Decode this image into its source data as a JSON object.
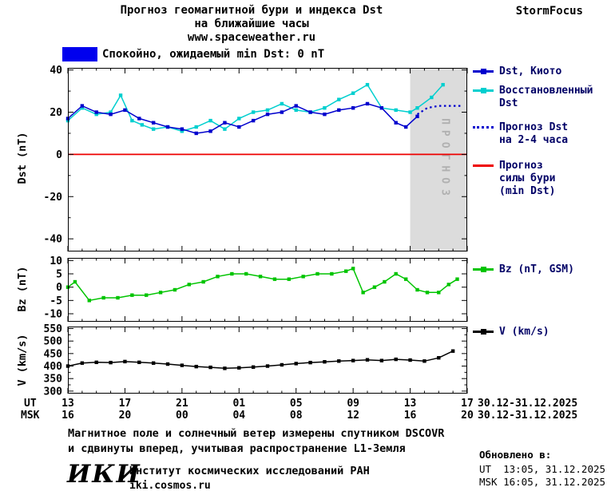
{
  "colors": {
    "kyoto": "#0000cd",
    "restored": "#00cfcf",
    "forecast": "#0000cd",
    "storm_line": "#ee0000",
    "bz": "#00c400",
    "v": "#000000",
    "quiet_box": "#0000ee",
    "forecast_region": "#dcdcdc",
    "forecast_text": "#b0b0b0",
    "legend_text": "#000066"
  },
  "header": {
    "title_line1": "Прогноз геомагнитной бури и индекса Dst",
    "title_line2": "на ближайшие часы",
    "website": "www.spaceweather.ru",
    "brand": "StormFocus"
  },
  "status": {
    "label": "Спокойно, ожидаемый min Dst: 0 nT"
  },
  "legend": {
    "kyoto": "Dst, Киото",
    "restored": "Восстановленный\nDst",
    "forecast": "Прогноз Dst\nна 2-4 часа",
    "storm": "Прогноз\nсилы бури\n(min Dst)",
    "bz": "Bz (nT, GSM)",
    "v": "V (km/s)"
  },
  "axes": {
    "dst_label": "Dst (nT)",
    "bz_label": "Bz (nT)",
    "v_label": "V (km/s)"
  },
  "xaxis": {
    "ut_label": "UT",
    "msk_label": "MSK",
    "tick_hours": [
      0,
      4,
      8,
      12,
      16,
      20,
      24,
      28
    ],
    "ut_ticks": [
      "13",
      "17",
      "21",
      "01",
      "05",
      "09",
      "13",
      "17"
    ],
    "msk_ticks": [
      "16",
      "20",
      "00",
      "04",
      "08",
      "12",
      "16",
      "20"
    ],
    "ut_date_range": "30.12-31.12.2025",
    "msk_date_range": "30.12-31.12.2025"
  },
  "notes": {
    "line1": "Магнитное поле и солнечный ветер измерены спутником DSCOVR",
    "line2": "и сдвинуты вперед, учитывая распространение L1-Земля"
  },
  "footer": {
    "logo": "ИКИ",
    "institute": "Институт космических исследований РАН",
    "site": "iki.cosmos.ru",
    "updated_label": "Обновлено в:",
    "updated_ut": "UT  13:05, 31.12.2025",
    "updated_msk": "MSK 16:05, 31.12.2025"
  },
  "chart_data": [
    {
      "name": "dst",
      "type": "line",
      "title": "Прогноз геомагнитной бури и индекса Dst на ближайшие часы",
      "ylabel": "Dst (nT)",
      "xlabel": "UT hours 13 (30.12.2025) through 17 (31.12.2025)",
      "xlim": [
        0,
        28
      ],
      "ylim": [
        -46,
        41
      ],
      "yticks": [
        40,
        20,
        0,
        -20,
        -40
      ],
      "yminor": 10,
      "xticks": [
        0,
        4,
        8,
        12,
        16,
        20,
        24,
        28
      ],
      "xminor": 1,
      "forecast_region": [
        24,
        28
      ],
      "forecast_label": "ПРОГНОЗ",
      "forecast_fill": "#dcdcdc",
      "forecast_label_color": "#b0b0b0",
      "series": [
        {
          "name": "Прогноз силы бури (min Dst)",
          "color": "#ee0000",
          "width": 1.8,
          "x": [
            0,
            28
          ],
          "y": [
            0,
            0
          ]
        },
        {
          "name": "Восстановленный Dst",
          "color": "#00cfcf",
          "marker": "square",
          "x": [
            0,
            1,
            2,
            3,
            3.7,
            4.5,
            5.2,
            6,
            7,
            8,
            9,
            10,
            11,
            12,
            13,
            14,
            15,
            16,
            17,
            18,
            19,
            20,
            21,
            22,
            23,
            24,
            24.5,
            25.5,
            26.3
          ],
          "y": [
            16,
            22,
            19,
            20,
            28,
            16,
            14,
            12,
            13,
            11,
            13,
            16,
            12,
            17,
            20,
            21,
            24,
            21,
            20,
            22,
            26,
            29,
            33,
            22,
            21,
            20,
            22,
            27,
            33
          ]
        },
        {
          "name": "Dst, Киото",
          "color": "#0000cd",
          "marker": "square",
          "x": [
            0,
            1,
            2,
            3,
            4,
            5,
            6,
            7,
            8,
            9,
            10,
            11,
            12,
            13,
            14,
            15,
            16,
            17,
            18,
            19,
            20,
            21,
            22,
            23,
            23.7,
            24.5
          ],
          "y": [
            17,
            23,
            20,
            19,
            21,
            17,
            15,
            13,
            12,
            10,
            11,
            15,
            13,
            16,
            19,
            20,
            23,
            20,
            19,
            21,
            22,
            24,
            22,
            15,
            13,
            18
          ]
        },
        {
          "name": "Прогноз Dst на 2-4 часа",
          "color": "#0000cd",
          "dash": "2.5 3.5",
          "width": 2.2,
          "x": [
            24.5,
            25.2,
            26,
            27,
            27.6
          ],
          "y": [
            19,
            22,
            23,
            23,
            23
          ]
        }
      ]
    },
    {
      "name": "bz",
      "type": "line",
      "ylabel": "Bz (nT)",
      "xlim": [
        0,
        28
      ],
      "ylim": [
        -13,
        11
      ],
      "yticks": [
        10,
        5,
        0,
        -5,
        -10
      ],
      "xticks": [
        0,
        4,
        8,
        12,
        16,
        20,
        24,
        28
      ],
      "xminor": 1,
      "series": [
        {
          "name": "Bz (nT, GSM)",
          "color": "#00c400",
          "marker": "square",
          "x": [
            0,
            0.5,
            1.5,
            2.5,
            3.5,
            4.5,
            5.5,
            6.5,
            7.5,
            8.5,
            9.5,
            10.5,
            11.5,
            12.5,
            13.5,
            14.5,
            15.5,
            16.5,
            17.5,
            18.5,
            19.5,
            20,
            20.7,
            21.5,
            22.2,
            23,
            23.7,
            24.5,
            25.2,
            26,
            26.7,
            27.3
          ],
          "y": [
            0,
            2,
            -5,
            -4,
            -4,
            -3,
            -3,
            -2,
            -1,
            1,
            2,
            4,
            5,
            5,
            4,
            3,
            3,
            4,
            5,
            5,
            6,
            7,
            -2,
            0,
            2,
            5,
            3,
            -1,
            -2,
            -2,
            1,
            3
          ]
        }
      ]
    },
    {
      "name": "v",
      "type": "line",
      "ylabel": "V (km/s)",
      "xlim": [
        0,
        28
      ],
      "ylim": [
        290,
        558
      ],
      "yticks": [
        550,
        500,
        450,
        400,
        350,
        300
      ],
      "yminor": 25,
      "xticks": [
        0,
        4,
        8,
        12,
        16,
        20,
        24,
        28
      ],
      "xminor": 1,
      "series": [
        {
          "name": "V (km/s)",
          "color": "#000000",
          "marker": "square",
          "x": [
            0,
            1,
            2,
            3,
            4,
            5,
            6,
            7,
            8,
            9,
            10,
            11,
            12,
            13,
            14,
            15,
            16,
            17,
            18,
            19,
            20,
            21,
            22,
            23,
            24,
            25,
            26,
            27
          ],
          "y": [
            400,
            412,
            415,
            414,
            418,
            415,
            412,
            408,
            403,
            398,
            395,
            391,
            393,
            396,
            400,
            405,
            410,
            414,
            417,
            420,
            422,
            425,
            422,
            427,
            424,
            420,
            433,
            460
          ]
        }
      ]
    }
  ]
}
